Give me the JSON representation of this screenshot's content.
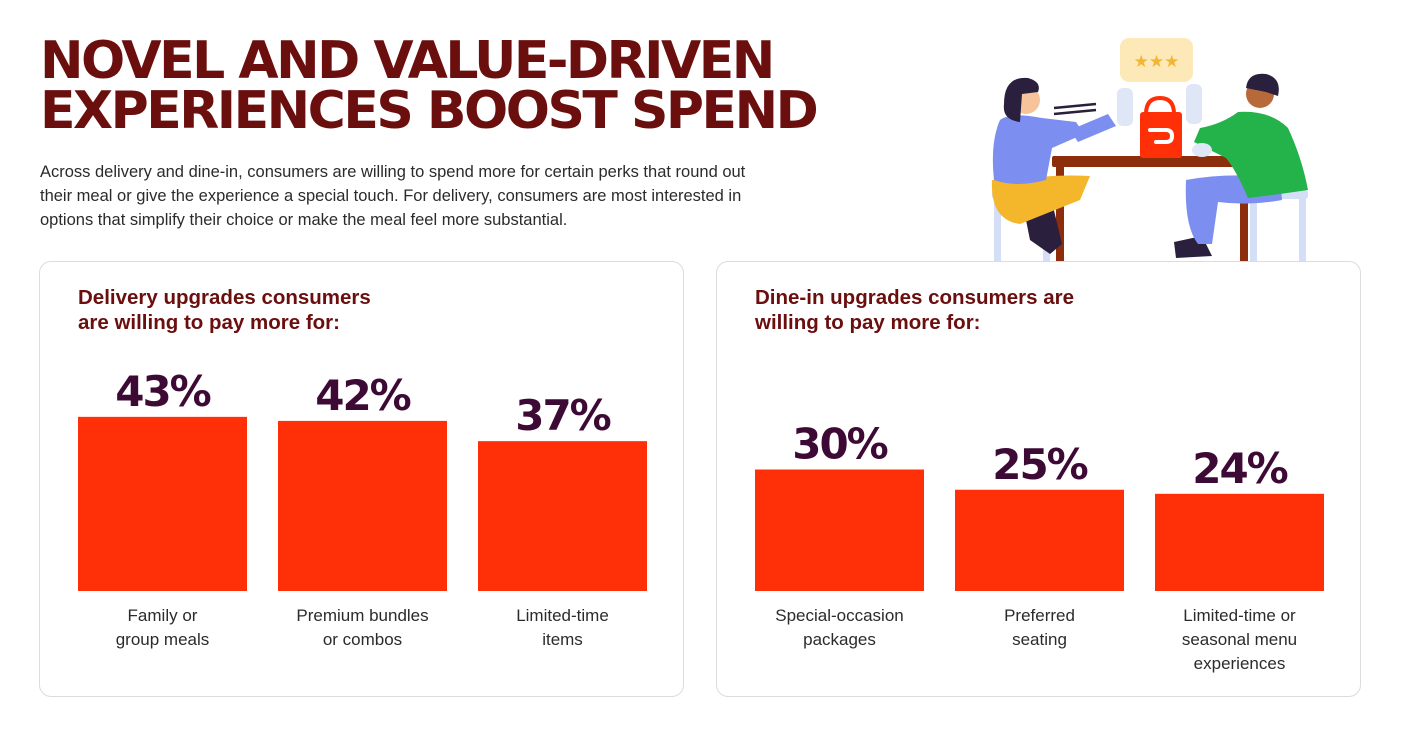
{
  "header": {
    "title_lines": [
      "NOVEL AND VALUE-DRIVEN",
      "EXPERIENCES BOOST SPEND"
    ],
    "intro_lines": [
      "Across delivery and dine-in, consumers are willing to spend more for certain perks that round out",
      "their meal or give the experience a special touch. For delivery, consumers are most interested in",
      "options that simplify their choice or make the meal feel more substantial."
    ]
  },
  "illustration": {
    "icons": [
      "person-eating-icon",
      "person-drinking-icon",
      "table-icon",
      "delivery-bag-icon",
      "rating-stars-icon",
      "chair-icon"
    ]
  },
  "colors": {
    "title": "#6b0e0e",
    "bar": "#ff3008",
    "value_label": "#3d0a35",
    "body_text": "#2b2b2b"
  },
  "chart_data": [
    {
      "type": "bar",
      "title_lines": [
        "Delivery upgrades consumers",
        "are willing to pay more for:"
      ],
      "categories": [
        [
          "Family or",
          "group meals"
        ],
        [
          "Premium bundles",
          "or combos"
        ],
        [
          "Limited-time",
          "items"
        ]
      ],
      "values": [
        43,
        42,
        37
      ],
      "value_labels": [
        "43%",
        "42%",
        "37%"
      ],
      "unit": "%",
      "ylim": [
        0,
        100
      ],
      "grid": false,
      "legend": "none"
    },
    {
      "type": "bar",
      "title_lines": [
        "Dine-in upgrades consumers are",
        "willing to pay more for:"
      ],
      "categories": [
        [
          "Special-occasion",
          "packages"
        ],
        [
          "Preferred",
          "seating"
        ],
        [
          "Limited-time or",
          "seasonal menu",
          "experiences"
        ]
      ],
      "values": [
        30,
        25,
        24
      ],
      "value_labels": [
        "30%",
        "25%",
        "24%"
      ],
      "unit": "%",
      "ylim": [
        0,
        100
      ],
      "grid": false,
      "legend": "none"
    }
  ]
}
